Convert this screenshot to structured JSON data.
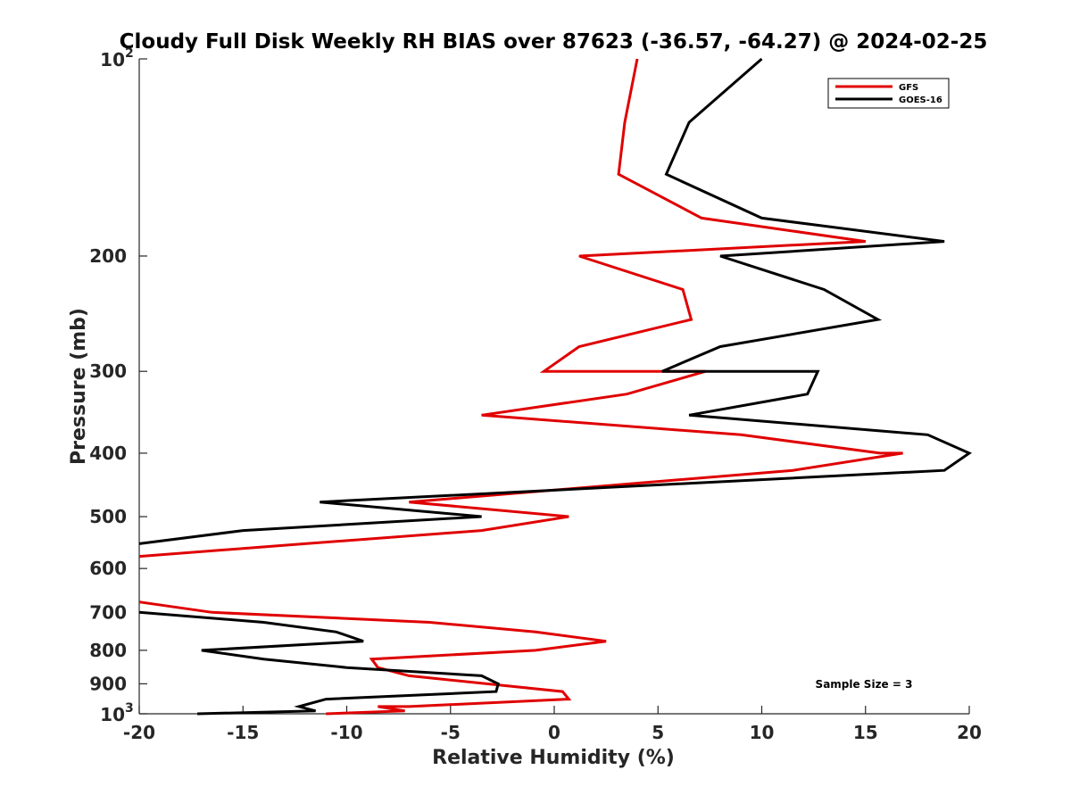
{
  "chart_data": {
    "type": "line",
    "title": "Cloudy Full Disk Weekly RH BIAS over 87623 (-36.57, -64.27) @ 2024-02-25",
    "xlabel": "Relative Humidity (%)",
    "ylabel": "Pressure (mb)",
    "xlim": [
      -20,
      20
    ],
    "ylim": [
      100,
      1000
    ],
    "y_scale": "log",
    "y_reversed": true,
    "x_ticks": [
      "-20",
      "-15",
      "-10",
      "-5",
      "0",
      "5",
      "10",
      "15",
      "20"
    ],
    "y_ticks": [
      {
        "value": 100,
        "label": "10",
        "sup": "2"
      },
      {
        "value": 200,
        "label": "200"
      },
      {
        "value": 300,
        "label": "300"
      },
      {
        "value": 400,
        "label": "400"
      },
      {
        "value": 500,
        "label": "500"
      },
      {
        "value": 600,
        "label": "600"
      },
      {
        "value": 700,
        "label": "700"
      },
      {
        "value": 800,
        "label": "800"
      },
      {
        "value": 900,
        "label": "900"
      },
      {
        "value": 1000,
        "label": "10",
        "sup": "3"
      }
    ],
    "grid": false,
    "legend_position": "top-right",
    "annotation": "Sample Size = 3",
    "series": [
      {
        "name": "GFS",
        "color": "#e00000",
        "points": [
          [
            4.0,
            100
          ],
          [
            3.4,
            125
          ],
          [
            3.1,
            150
          ],
          [
            7.1,
            175
          ],
          [
            15.0,
            190
          ],
          [
            1.2,
            200
          ],
          [
            6.2,
            225
          ],
          [
            6.6,
            250
          ],
          [
            1.2,
            275
          ],
          [
            -0.5,
            300
          ],
          [
            7.3,
            300
          ],
          [
            3.5,
            325
          ],
          [
            -3.5,
            350
          ],
          [
            9.0,
            375
          ],
          [
            15.7,
            400
          ],
          [
            16.8,
            400
          ],
          [
            11.5,
            425
          ],
          [
            -7.0,
            475
          ],
          [
            0.7,
            500
          ],
          [
            -3.5,
            525
          ],
          [
            -12.0,
            550
          ],
          [
            -20.0,
            575
          ],
          [
            null,
            null
          ],
          [
            -20.0,
            675
          ],
          [
            -16.5,
            700
          ],
          [
            -6.0,
            725
          ],
          [
            -0.9,
            750
          ],
          [
            2.5,
            775
          ],
          [
            -0.9,
            800
          ],
          [
            -8.8,
            825
          ],
          [
            -8.5,
            850
          ],
          [
            -7.0,
            875
          ],
          [
            0.4,
            925
          ],
          [
            0.7,
            950
          ],
          [
            -7.0,
            975
          ],
          [
            -8.5,
            975
          ],
          [
            -7.2,
            990
          ],
          [
            -11.0,
            1000
          ]
        ]
      },
      {
        "name": "GOES-16",
        "color": "#000000",
        "points": [
          [
            10.0,
            100
          ],
          [
            6.5,
            125
          ],
          [
            5.4,
            150
          ],
          [
            10.0,
            175
          ],
          [
            18.8,
            190
          ],
          [
            8.0,
            200
          ],
          [
            13.0,
            225
          ],
          [
            15.6,
            250
          ],
          [
            8.0,
            275
          ],
          [
            5.2,
            300
          ],
          [
            12.7,
            300
          ],
          [
            12.2,
            325
          ],
          [
            6.5,
            350
          ],
          [
            18.0,
            375
          ],
          [
            20.0,
            400
          ],
          [
            20.0,
            400
          ],
          [
            18.8,
            425
          ],
          [
            -11.3,
            475
          ],
          [
            -3.5,
            500
          ],
          [
            -15.0,
            525
          ],
          [
            -20.0,
            550
          ],
          [
            null,
            null
          ],
          [
            -20.0,
            700
          ],
          [
            -14.0,
            725
          ],
          [
            -10.5,
            750
          ],
          [
            -9.2,
            775
          ],
          [
            -17.0,
            800
          ],
          [
            -14.0,
            825
          ],
          [
            -10.0,
            850
          ],
          [
            -3.5,
            875
          ],
          [
            -2.7,
            900
          ],
          [
            -2.8,
            925
          ],
          [
            -11.0,
            950
          ],
          [
            -12.3,
            975
          ],
          [
            -11.5,
            990
          ],
          [
            -17.2,
            1000
          ]
        ]
      }
    ]
  }
}
